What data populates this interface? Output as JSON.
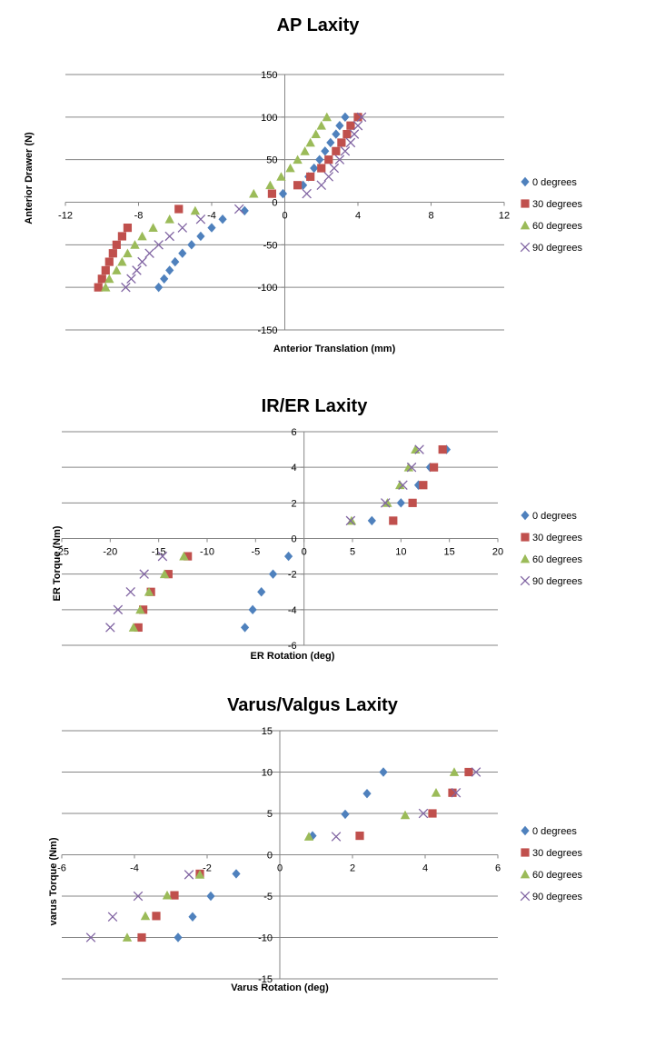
{
  "colors": {
    "0 degrees": "#4f81bd",
    "30 degrees": "#c0504d",
    "60 degrees": "#9bbb59",
    "90 degrees": "#8064a2",
    "grid": "#868686",
    "axis": "#868686"
  },
  "markers": {
    "0 degrees": "diamond",
    "30 degrees": "square",
    "60 degrees": "triangle",
    "90 degrees": "x"
  },
  "chart_data": [
    {
      "type": "scatter",
      "title": "AP Laxity",
      "xlabel": "Anterior Translation  (mm)",
      "ylabel": "Anterior Drawer (N)",
      "xlim": [
        -12,
        12
      ],
      "ylim": [
        -150,
        150
      ],
      "xticks": [
        -12,
        -8,
        -4,
        0,
        4,
        8,
        12
      ],
      "yticks": [
        -150,
        -100,
        -50,
        0,
        50,
        100,
        150
      ],
      "grid": "horizontal",
      "legend_position": "right",
      "series": [
        {
          "name": "0 degrees",
          "points": [
            [
              -6.9,
              -100
            ],
            [
              -6.6,
              -90
            ],
            [
              -6.3,
              -80
            ],
            [
              -6.0,
              -70
            ],
            [
              -5.6,
              -60
            ],
            [
              -5.1,
              -50
            ],
            [
              -4.6,
              -40
            ],
            [
              -4.0,
              -30
            ],
            [
              -3.4,
              -20
            ],
            [
              -2.2,
              -10
            ],
            [
              -0.1,
              10
            ],
            [
              1.0,
              20
            ],
            [
              1.3,
              30
            ],
            [
              1.6,
              40
            ],
            [
              1.9,
              50
            ],
            [
              2.2,
              60
            ],
            [
              2.5,
              70
            ],
            [
              2.8,
              80
            ],
            [
              3.0,
              90
            ],
            [
              3.3,
              100
            ]
          ]
        },
        {
          "name": "30 degrees",
          "points": [
            [
              -10.2,
              -100
            ],
            [
              -10.0,
              -90
            ],
            [
              -9.8,
              -80
            ],
            [
              -9.6,
              -70
            ],
            [
              -9.4,
              -60
            ],
            [
              -9.2,
              -50
            ],
            [
              -8.9,
              -40
            ],
            [
              -8.6,
              -30
            ],
            [
              -5.8,
              -8
            ],
            [
              -0.7,
              10
            ],
            [
              0.7,
              20
            ],
            [
              1.4,
              30
            ],
            [
              2.0,
              40
            ],
            [
              2.4,
              50
            ],
            [
              2.8,
              60
            ],
            [
              3.1,
              70
            ],
            [
              3.4,
              80
            ],
            [
              3.6,
              90
            ],
            [
              4.0,
              100
            ]
          ]
        },
        {
          "name": "60 degrees",
          "points": [
            [
              -9.8,
              -100
            ],
            [
              -9.6,
              -90
            ],
            [
              -9.2,
              -80
            ],
            [
              -8.9,
              -70
            ],
            [
              -8.6,
              -60
            ],
            [
              -8.2,
              -50
            ],
            [
              -7.8,
              -40
            ],
            [
              -7.2,
              -30
            ],
            [
              -6.3,
              -20
            ],
            [
              -4.9,
              -10
            ],
            [
              -1.7,
              10
            ],
            [
              -0.8,
              20
            ],
            [
              -0.2,
              30
            ],
            [
              0.3,
              40
            ],
            [
              0.7,
              50
            ],
            [
              1.1,
              60
            ],
            [
              1.4,
              70
            ],
            [
              1.7,
              80
            ],
            [
              2.0,
              90
            ],
            [
              2.3,
              100
            ]
          ]
        },
        {
          "name": "90 degrees",
          "points": [
            [
              -8.7,
              -100
            ],
            [
              -8.4,
              -90
            ],
            [
              -8.1,
              -80
            ],
            [
              -7.8,
              -70
            ],
            [
              -7.4,
              -60
            ],
            [
              -6.9,
              -50
            ],
            [
              -6.3,
              -40
            ],
            [
              -5.6,
              -30
            ],
            [
              -4.6,
              -20
            ],
            [
              -2.5,
              -8
            ],
            [
              1.2,
              10
            ],
            [
              2.0,
              20
            ],
            [
              2.4,
              30
            ],
            [
              2.7,
              40
            ],
            [
              3.0,
              50
            ],
            [
              3.3,
              60
            ],
            [
              3.6,
              70
            ],
            [
              3.8,
              80
            ],
            [
              4.0,
              90
            ],
            [
              4.2,
              100
            ]
          ]
        }
      ],
      "legend": [
        "0 degrees",
        "30 degrees",
        "60 degrees",
        "90 degrees"
      ]
    },
    {
      "type": "scatter",
      "title": "IR/ER Laxity",
      "xlabel": "ER Rotation (deg)",
      "ylabel": "ER Torque  (Nm)",
      "xlim": [
        -25,
        20
      ],
      "ylim": [
        -6,
        6
      ],
      "xticks": [
        -25,
        -20,
        -15,
        -10,
        -5,
        0,
        5,
        10,
        15,
        20
      ],
      "yticks": [
        -6,
        -4,
        -2,
        0,
        2,
        4,
        6
      ],
      "grid": "horizontal",
      "legend_position": "right",
      "series": [
        {
          "name": "0 degrees",
          "points": [
            [
              -6.1,
              -5
            ],
            [
              -5.3,
              -4
            ],
            [
              -4.4,
              -3
            ],
            [
              -3.2,
              -2
            ],
            [
              -1.6,
              -1
            ],
            [
              7.0,
              1
            ],
            [
              10.0,
              2
            ],
            [
              11.8,
              3
            ],
            [
              13.0,
              4
            ],
            [
              14.7,
              5
            ]
          ]
        },
        {
          "name": "30 degrees",
          "points": [
            [
              -17.1,
              -5
            ],
            [
              -16.6,
              -4
            ],
            [
              -15.8,
              -3
            ],
            [
              -14.0,
              -2
            ],
            [
              -12.0,
              -1
            ],
            [
              9.2,
              1
            ],
            [
              11.2,
              2
            ],
            [
              12.3,
              3
            ],
            [
              13.4,
              4
            ],
            [
              14.3,
              5
            ]
          ]
        },
        {
          "name": "60 degrees",
          "points": [
            [
              -17.6,
              -5
            ],
            [
              -16.9,
              -4
            ],
            [
              -16.0,
              -3
            ],
            [
              -14.4,
              -2
            ],
            [
              -12.4,
              -1
            ],
            [
              4.9,
              1
            ],
            [
              8.6,
              2
            ],
            [
              9.9,
              3
            ],
            [
              10.8,
              4
            ],
            [
              11.5,
              5
            ]
          ]
        },
        {
          "name": "90 degrees",
          "points": [
            [
              -20.0,
              -5
            ],
            [
              -19.2,
              -4
            ],
            [
              -17.9,
              -3
            ],
            [
              -16.5,
              -2
            ],
            [
              -14.6,
              -1
            ],
            [
              4.8,
              1
            ],
            [
              8.4,
              2
            ],
            [
              10.2,
              3
            ],
            [
              11.1,
              4
            ],
            [
              11.9,
              5
            ]
          ]
        }
      ],
      "legend": [
        "0 degrees",
        "30 degrees",
        "60 degrees",
        "90 degrees"
      ]
    },
    {
      "type": "scatter",
      "title": "Varus/Valgus Laxity",
      "xlabel": "Varus Rotation (deg)",
      "ylabel": "varus Torque (Nm)",
      "xlim": [
        -6,
        6
      ],
      "ylim": [
        -15,
        15
      ],
      "xticks": [
        -6,
        -4,
        -2,
        0,
        2,
        4,
        6
      ],
      "yticks": [
        -15,
        -10,
        -5,
        0,
        5,
        10,
        15
      ],
      "grid": "horizontal",
      "legend_position": "right",
      "series": [
        {
          "name": "0 degrees",
          "points": [
            [
              -2.8,
              -10
            ],
            [
              -2.4,
              -7.5
            ],
            [
              -1.9,
              -5
            ],
            [
              -1.2,
              -2.3
            ],
            [
              0.9,
              2.3
            ],
            [
              1.8,
              4.9
            ],
            [
              2.4,
              7.4
            ],
            [
              2.85,
              10
            ]
          ]
        },
        {
          "name": "30 degrees",
          "points": [
            [
              -3.8,
              -10
            ],
            [
              -3.4,
              -7.4
            ],
            [
              -2.9,
              -4.9
            ],
            [
              -2.2,
              -2.3
            ],
            [
              2.2,
              2.3
            ],
            [
              4.2,
              5
            ],
            [
              4.75,
              7.5
            ],
            [
              5.2,
              10
            ]
          ]
        },
        {
          "name": "60 degrees",
          "points": [
            [
              -4.2,
              -10
            ],
            [
              -3.7,
              -7.4
            ],
            [
              -3.1,
              -4.9
            ],
            [
              -2.2,
              -2.4
            ],
            [
              0.8,
              2.2
            ],
            [
              3.45,
              4.8
            ],
            [
              4.3,
              7.5
            ],
            [
              4.8,
              10
            ]
          ]
        },
        {
          "name": "90 degrees",
          "points": [
            [
              -5.2,
              -10
            ],
            [
              -4.6,
              -7.5
            ],
            [
              -3.9,
              -5
            ],
            [
              -2.5,
              -2.4
            ],
            [
              1.55,
              2.2
            ],
            [
              3.95,
              5
            ],
            [
              4.85,
              7.5
            ],
            [
              5.4,
              10
            ]
          ]
        }
      ],
      "legend": [
        "0 degrees",
        "30 degrees",
        "60 degrees",
        "90 degrees"
      ]
    }
  ]
}
